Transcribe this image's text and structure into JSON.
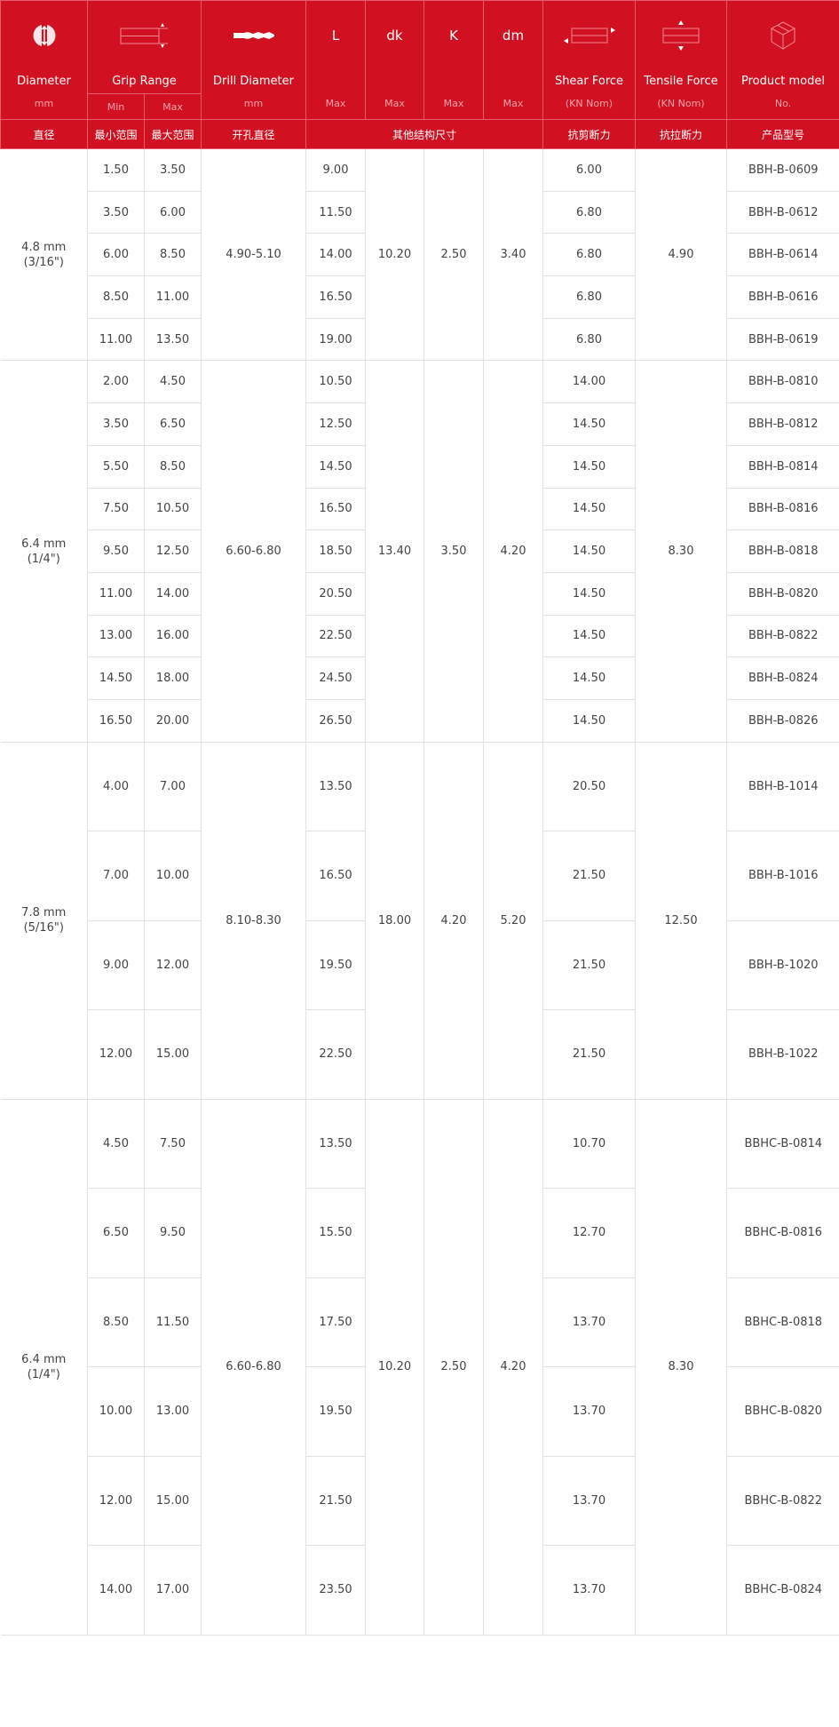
{
  "colors": {
    "header_bg": "#d11122",
    "border": "#e2e2e2",
    "text": "#444444"
  },
  "header": {
    "diameter": {
      "title": "Diameter",
      "unit": "mm",
      "cn": "直径",
      "icon": "diameter-icon"
    },
    "grip": {
      "title": "Grip Range",
      "min": "Min",
      "max": "Max",
      "cn_min": "最小范围",
      "cn_max": "最大范围",
      "icon": "grip-range-icon"
    },
    "drill": {
      "title": "Drill Diameter",
      "unit": "mm",
      "cn": "开孔直径",
      "icon": "drill-bit-icon"
    },
    "L": {
      "title": "L",
      "unit": "Max"
    },
    "dk": {
      "title": "dk",
      "unit": "Max"
    },
    "K": {
      "title": "K",
      "unit": "Max"
    },
    "dm": {
      "title": "dm",
      "unit": "Max"
    },
    "other_cn": "其他结构尺寸",
    "shear": {
      "title": "Shear Force",
      "unit": "(KN Nom)",
      "cn": "抗剪断力",
      "icon": "shear-force-icon"
    },
    "tensile": {
      "title": "Tensile Force",
      "unit": "(KN Nom)",
      "cn": "抗拉断力",
      "icon": "tensile-force-icon"
    },
    "model": {
      "title": "Product model",
      "unit": "No.",
      "cn": "产品型号",
      "icon": "box-icon"
    }
  },
  "groups": [
    {
      "diameter": "4.8 mm",
      "inch": "(3/16\")",
      "drill": "4.90-5.10",
      "dk": "10.20",
      "K": "2.50",
      "dm": "3.40",
      "tensile": "4.90",
      "rows": [
        [
          "1.50",
          "3.50",
          "9.00",
          "6.00",
          "BBH-B-0609"
        ],
        [
          "3.50",
          "6.00",
          "11.50",
          "6.80",
          "BBH-B-0612"
        ],
        [
          "6.00",
          "8.50",
          "14.00",
          "6.80",
          "BBH-B-0614"
        ],
        [
          "8.50",
          "11.00",
          "16.50",
          "6.80",
          "BBH-B-0616"
        ],
        [
          "11.00",
          "13.50",
          "19.00",
          "6.80",
          "BBH-B-0619"
        ]
      ]
    },
    {
      "diameter": "6.4 mm",
      "inch": "(1/4\")",
      "drill": "6.60-6.80",
      "dk": "13.40",
      "K": "3.50",
      "dm": "4.20",
      "tensile": "8.30",
      "rows": [
        [
          "2.00",
          "4.50",
          "10.50",
          "14.00",
          "BBH-B-0810"
        ],
        [
          "3.50",
          "6.50",
          "12.50",
          "14.50",
          "BBH-B-0812"
        ],
        [
          "5.50",
          "8.50",
          "14.50",
          "14.50",
          "BBH-B-0814"
        ],
        [
          "7.50",
          "10.50",
          "16.50",
          "14.50",
          "BBH-B-0816"
        ],
        [
          "9.50",
          "12.50",
          "18.50",
          "14.50",
          "BBH-B-0818"
        ],
        [
          "11.00",
          "14.00",
          "20.50",
          "14.50",
          "BBH-B-0820"
        ],
        [
          "13.00",
          "16.00",
          "22.50",
          "14.50",
          "BBH-B-0822"
        ],
        [
          "14.50",
          "18.00",
          "24.50",
          "14.50",
          "BBH-B-0824"
        ],
        [
          "16.50",
          "20.00",
          "26.50",
          "14.50",
          "BBH-B-0826"
        ]
      ]
    },
    {
      "diameter": "7.8 mm",
      "inch": "(5/16\")",
      "drill": "8.10-8.30",
      "dk": "18.00",
      "K": "4.20",
      "dm": "5.20",
      "tensile": "12.50",
      "rows": [
        [
          "4.00",
          "7.00",
          "13.50",
          "20.50",
          "BBH-B-1014"
        ],
        [
          "7.00",
          "10.00",
          "16.50",
          "21.50",
          "BBH-B-1016"
        ],
        [
          "9.00",
          "12.00",
          "19.50",
          "21.50",
          "BBH-B-1020"
        ],
        [
          "12.00",
          "15.00",
          "22.50",
          "21.50",
          "BBH-B-1022"
        ]
      ]
    },
    {
      "diameter": "6.4 mm",
      "inch": "(1/4\")",
      "drill": "6.60-6.80",
      "dk": "10.20",
      "K": "2.50",
      "dm": "4.20",
      "tensile": "8.30",
      "rows": [
        [
          "4.50",
          "7.50",
          "13.50",
          "10.70",
          "BBHC-B-0814"
        ],
        [
          "6.50",
          "9.50",
          "15.50",
          "12.70",
          "BBHC-B-0816"
        ],
        [
          "8.50",
          "11.50",
          "17.50",
          "13.70",
          "BBHC-B-0818"
        ],
        [
          "10.00",
          "13.00",
          "19.50",
          "13.70",
          "BBHC-B-0820"
        ],
        [
          "12.00",
          "15.00",
          "21.50",
          "13.70",
          "BBHC-B-0822"
        ],
        [
          "14.00",
          "17.00",
          "23.50",
          "13.70",
          "BBHC-B-0824"
        ]
      ]
    }
  ]
}
